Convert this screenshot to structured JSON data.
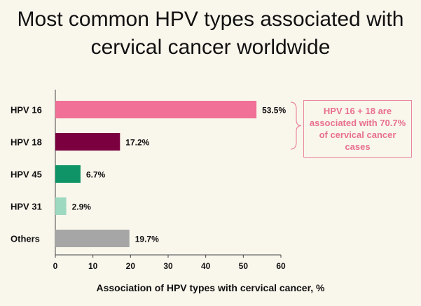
{
  "title_line1": "Most common HPV types associated with",
  "title_line2": "cervical cancer worldwide",
  "callout_text": "HPV 16 + 18 are associated with 70.7% of cervical cancer cases",
  "chart_data": {
    "type": "bar",
    "orientation": "horizontal",
    "categories": [
      "HPV 16",
      "HPV 18",
      "HPV 45",
      "HPV 31",
      "Others"
    ],
    "values": [
      53.5,
      17.2,
      6.7,
      2.9,
      19.7
    ],
    "value_labels": [
      "53.5%",
      "17.2%",
      "6.7%",
      "2.9%",
      "19.7%"
    ],
    "colors": [
      "#f07098",
      "#7a0040",
      "#0e9466",
      "#9dd8c0",
      "#a6a6a6"
    ],
    "xlabel": "Association of HPV types with cervical cancer, %",
    "ylabel": "",
    "xlim": [
      0,
      60
    ],
    "xticks": [
      0,
      10,
      20,
      30,
      40,
      50,
      60
    ],
    "grid": false,
    "legend": "none"
  }
}
